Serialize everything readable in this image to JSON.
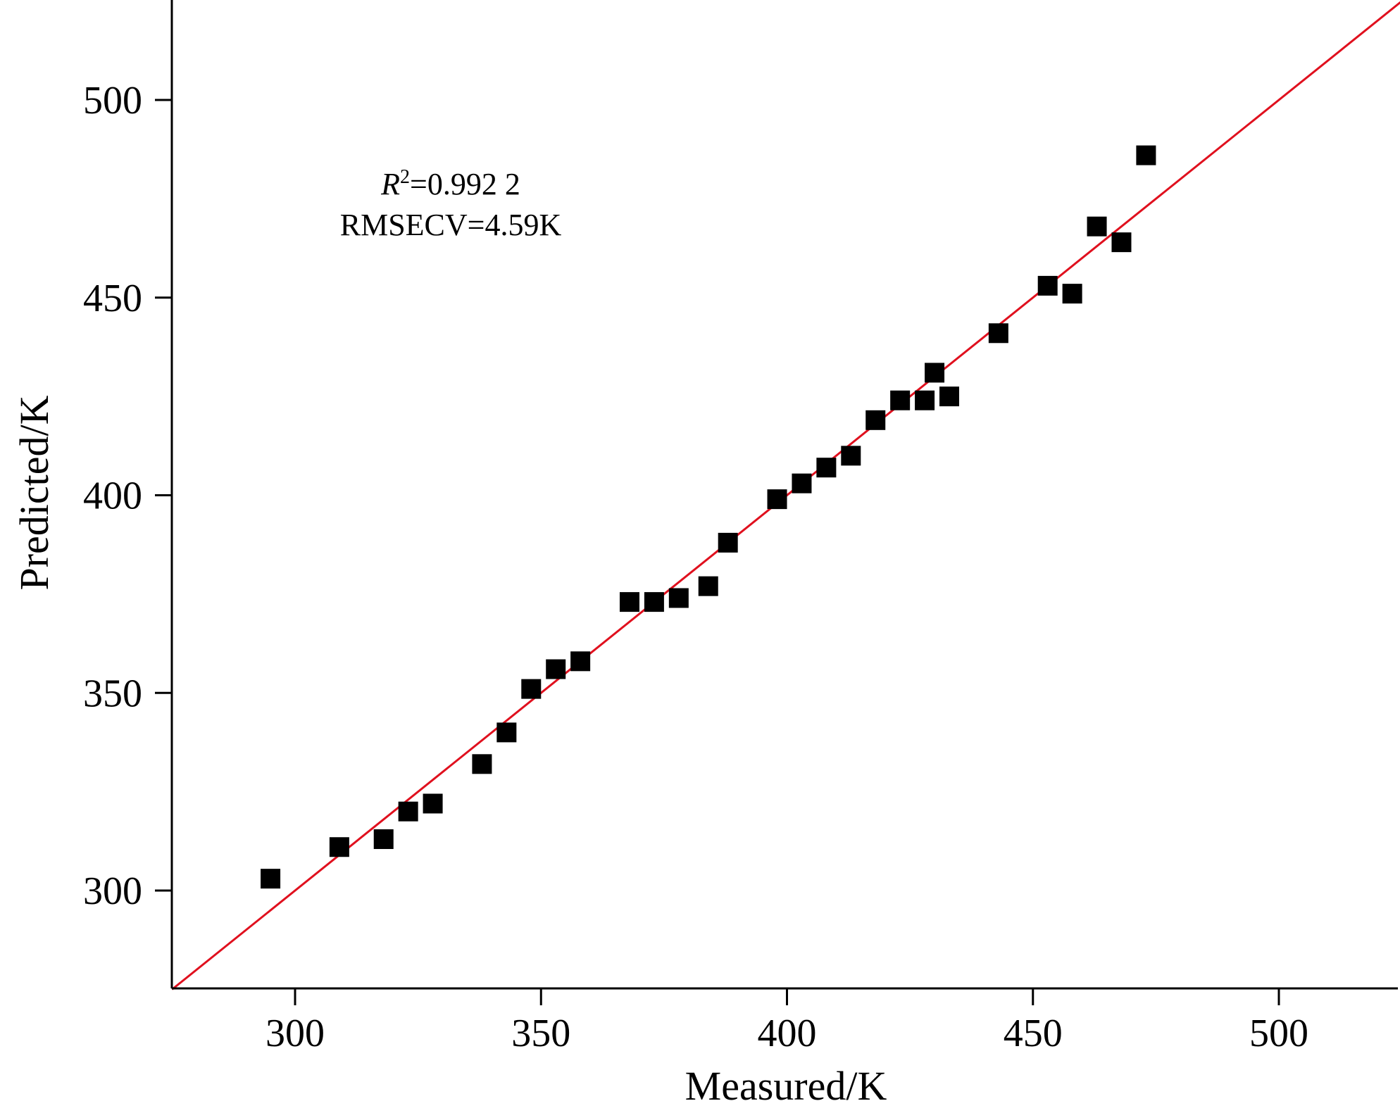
{
  "chart_data": {
    "type": "scatter",
    "xlabel": "Measured/K",
    "ylabel": "Predicted/K",
    "xlim": [
      275,
      525
    ],
    "ylim": [
      275,
      525
    ],
    "xticks": [
      300,
      350,
      400,
      450,
      500
    ],
    "yticks": [
      300,
      350,
      400,
      450,
      500
    ],
    "grid": false,
    "annotations": {
      "r2_symbol": "R",
      "r2_superscript": "2",
      "r2_value": "=0.992 2",
      "rmsecv": "RMSECV=4.59K"
    },
    "marker_color": "#000000",
    "line_color": "#e0101e",
    "reference_line": {
      "type": "y=x"
    },
    "points": [
      {
        "x": 295,
        "y": 303
      },
      {
        "x": 309,
        "y": 311
      },
      {
        "x": 318,
        "y": 313
      },
      {
        "x": 323,
        "y": 320
      },
      {
        "x": 328,
        "y": 322
      },
      {
        "x": 338,
        "y": 332
      },
      {
        "x": 343,
        "y": 340
      },
      {
        "x": 348,
        "y": 351
      },
      {
        "x": 353,
        "y": 356
      },
      {
        "x": 358,
        "y": 358
      },
      {
        "x": 368,
        "y": 373
      },
      {
        "x": 373,
        "y": 373
      },
      {
        "x": 378,
        "y": 374
      },
      {
        "x": 384,
        "y": 377
      },
      {
        "x": 388,
        "y": 388
      },
      {
        "x": 398,
        "y": 399
      },
      {
        "x": 403,
        "y": 403
      },
      {
        "x": 408,
        "y": 407
      },
      {
        "x": 413,
        "y": 410
      },
      {
        "x": 418,
        "y": 419
      },
      {
        "x": 423,
        "y": 424
      },
      {
        "x": 428,
        "y": 424
      },
      {
        "x": 430,
        "y": 431
      },
      {
        "x": 433,
        "y": 425
      },
      {
        "x": 443,
        "y": 441
      },
      {
        "x": 453,
        "y": 453
      },
      {
        "x": 458,
        "y": 451
      },
      {
        "x": 463,
        "y": 468
      },
      {
        "x": 468,
        "y": 464
      },
      {
        "x": 473,
        "y": 486
      }
    ]
  }
}
